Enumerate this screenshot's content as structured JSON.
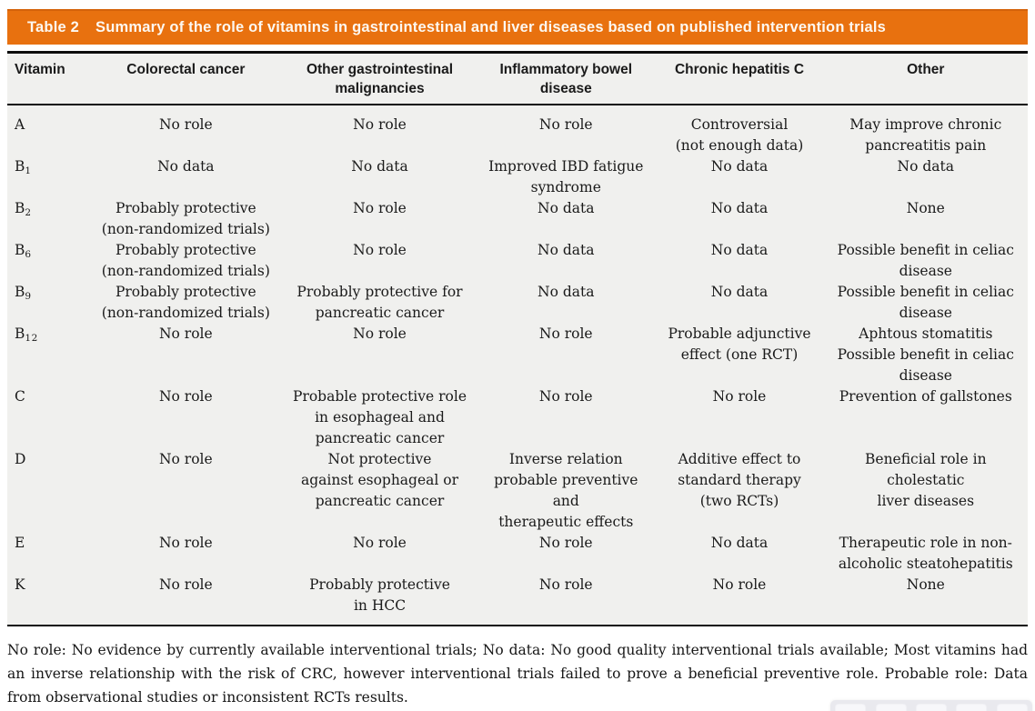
{
  "title": {
    "label": "Table 2",
    "text": "Summary of the role of vitamins in gastrointestinal and liver diseases based on published intervention trials"
  },
  "table": {
    "columns": [
      "Vitamin",
      "Colorectal cancer",
      "Other gastrointestinal\nmalignancies",
      "Inflammatory bowel\ndisease",
      "Chronic hepatitis C",
      "Other"
    ],
    "rows": [
      {
        "vitamin": "A",
        "sub": "",
        "cells": [
          "No role",
          "No role",
          "No role",
          "Controversial\n(not enough data)",
          "May improve chronic\npancreatitis pain"
        ]
      },
      {
        "vitamin": "B",
        "sub": "1",
        "cells": [
          "No data",
          "No data",
          "Improved IBD fatigue\nsyndrome",
          "No data",
          "No data"
        ]
      },
      {
        "vitamin": "B",
        "sub": "2",
        "cells": [
          "Probably protective\n(non-randomized trials)",
          "No role",
          "No data",
          "No data",
          "None"
        ]
      },
      {
        "vitamin": "B",
        "sub": "6",
        "cells": [
          "Probably protective\n(non-randomized trials)",
          "No role",
          "No data",
          "No data",
          "Possible benefit in celiac\ndisease"
        ]
      },
      {
        "vitamin": "B",
        "sub": "9",
        "cells": [
          "Probably protective\n(non-randomized trials)",
          "Probably protective for\npancreatic cancer",
          "No data",
          "No data",
          "Possible benefit in celiac\ndisease"
        ]
      },
      {
        "vitamin": "B",
        "sub": "12",
        "cells": [
          "No role",
          "No role",
          "No role",
          "Probable adjunctive\neffect (one RCT)",
          "Aphtous stomatitis\nPossible benefit in celiac\ndisease"
        ]
      },
      {
        "vitamin": "C",
        "sub": "",
        "cells": [
          "No role",
          "Probable protective role\nin esophageal and\npancreatic cancer",
          "No role",
          "No role",
          "Prevention of gallstones"
        ]
      },
      {
        "vitamin": "D",
        "sub": "",
        "cells": [
          "No role",
          "Not protective\nagainst esophageal or\npancreatic cancer",
          "Inverse relation\nprobable preventive and\ntherapeutic effects",
          "Additive effect to\nstandard therapy\n(two RCTs)",
          "Beneficial role in cholestatic\nliver diseases"
        ]
      },
      {
        "vitamin": "E",
        "sub": "",
        "cells": [
          "No role",
          "No role",
          "No role",
          "No data",
          "Therapeutic role in non-\nalcoholic steatohepatitis"
        ]
      },
      {
        "vitamin": "K",
        "sub": "",
        "cells": [
          "No role",
          "Probably protective\nin HCC",
          "No role",
          "No role",
          "None"
        ]
      }
    ]
  },
  "footnote": "No role: No evidence by currently available interventional trials; No data: No good quality interventional trials available; Most vitamins had an inverse relationship with the risk of CRC, however interventional trials failed to prove a beneficial preventive role. Probable role: Data from observational studies or inconsistent RCTs results.",
  "colors": {
    "accent_orange": "#e8710f",
    "table_background": "#f0f0ee",
    "rule_black": "#0d0d0d"
  }
}
